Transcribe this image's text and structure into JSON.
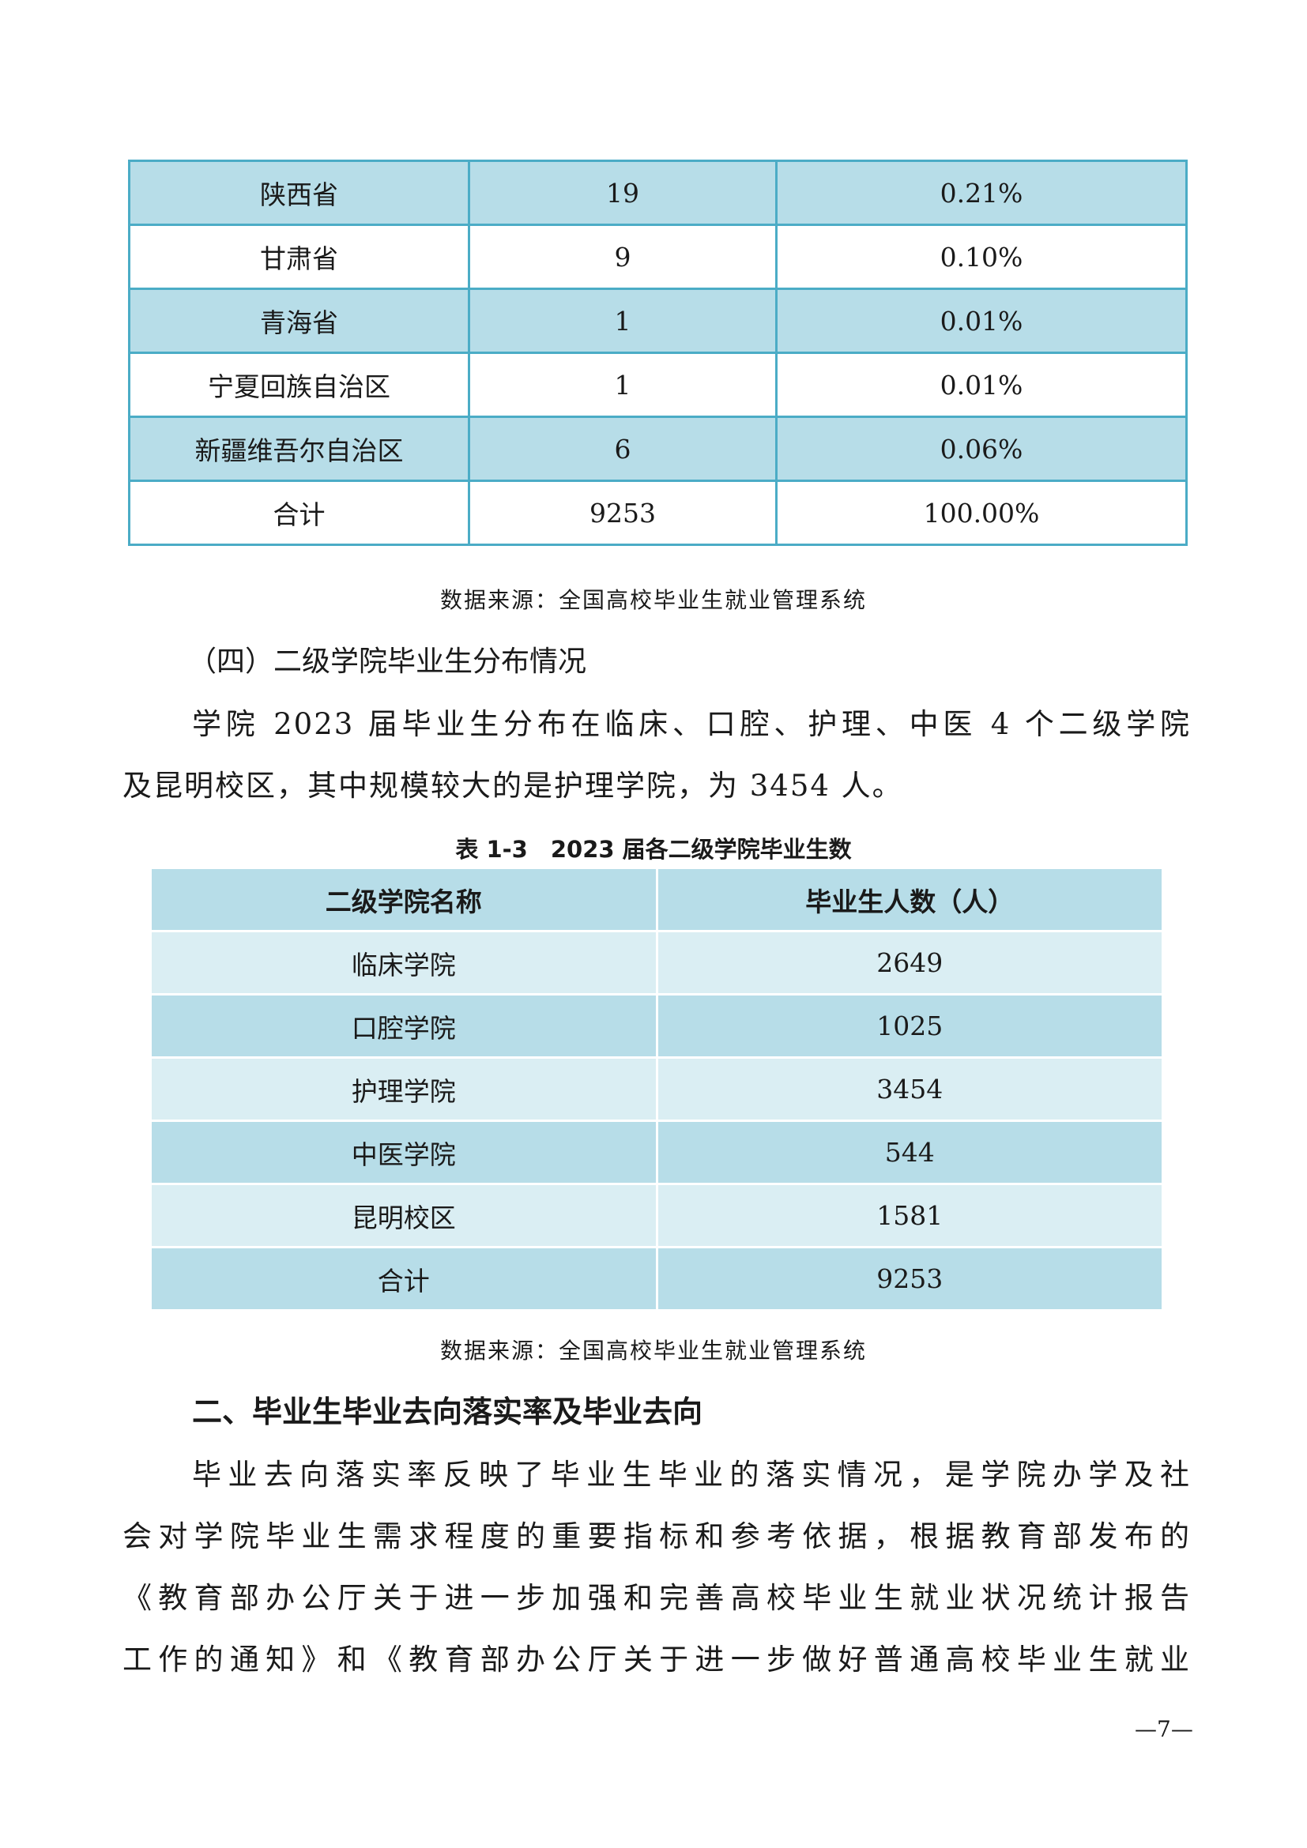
{
  "table1": {
    "rows": [
      {
        "region": "陕西省",
        "count": "19",
        "pct": "0.21%"
      },
      {
        "region": "甘肃省",
        "count": "9",
        "pct": "0.10%"
      },
      {
        "region": "青海省",
        "count": "1",
        "pct": "0.01%"
      },
      {
        "region": "宁夏回族自治区",
        "count": "1",
        "pct": "0.01%"
      },
      {
        "region": "新疆维吾尔自治区",
        "count": "6",
        "pct": "0.06%"
      },
      {
        "region": "合计",
        "count": "9253",
        "pct": "100.00%"
      }
    ],
    "source": "数据来源：全国高校毕业生就业管理系统"
  },
  "section4": {
    "heading": "（四）二级学院毕业生分布情况",
    "lines": [
      "学院 2023 届毕业生分布在临床、口腔、护理、中医 4 个二级学院",
      "及昆明校区，其中规模较大的是护理学院，为 3454 人。"
    ]
  },
  "table2": {
    "title": "表 1-3　2023 届各二级学院毕业生数",
    "headers": [
      "二级学院名称",
      "毕业生人数（人）"
    ],
    "rows": [
      {
        "name": "临床学院",
        "count": "2649"
      },
      {
        "name": "口腔学院",
        "count": "1025"
      },
      {
        "name": "护理学院",
        "count": "3454"
      },
      {
        "name": "中医学院",
        "count": "544"
      },
      {
        "name": "昆明校区",
        "count": "1581"
      },
      {
        "name": "合计",
        "count": "9253"
      }
    ],
    "source": "数据来源：全国高校毕业生就业管理系统"
  },
  "section2": {
    "heading": "二、毕业生毕业去向落实率及毕业去向",
    "lines": [
      "毕业去向落实率反映了毕业生毕业的落实情况，是学院办学及社",
      "会对学院毕业生需求程度的重要指标和参考依据，根据教育部发布的",
      "《教育部办公厅关于进一步加强和完善高校毕业生就业状况统计报告",
      "工作的通知》和《教育部办公厅关于进一步做好普通高校毕业生就业"
    ]
  },
  "page_number": "—7—",
  "colors": {
    "table_border": "#4bacc6",
    "row_blue": "#b7dde8",
    "row_light": "#daeef3"
  }
}
